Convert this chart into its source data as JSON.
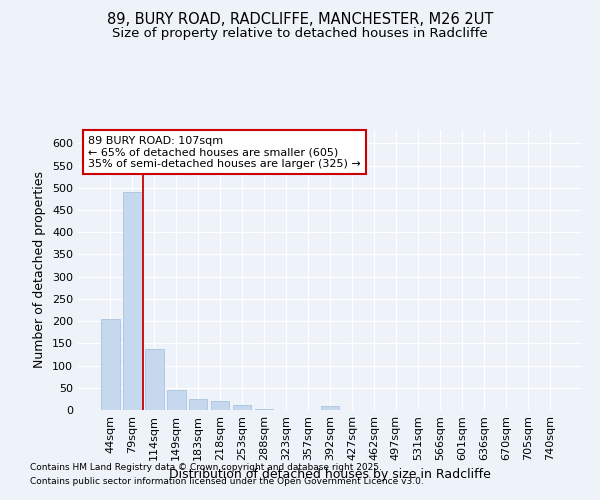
{
  "title_line1": "89, BURY ROAD, RADCLIFFE, MANCHESTER, M26 2UT",
  "title_line2": "Size of property relative to detached houses in Radcliffe",
  "xlabel": "Distribution of detached houses by size in Radcliffe",
  "ylabel": "Number of detached properties",
  "categories": [
    "44sqm",
    "79sqm",
    "114sqm",
    "149sqm",
    "183sqm",
    "218sqm",
    "253sqm",
    "288sqm",
    "323sqm",
    "357sqm",
    "392sqm",
    "427sqm",
    "462sqm",
    "497sqm",
    "531sqm",
    "566sqm",
    "601sqm",
    "636sqm",
    "670sqm",
    "705sqm",
    "740sqm"
  ],
  "values": [
    205,
    490,
    138,
    45,
    24,
    20,
    12,
    2,
    0,
    0,
    8,
    0,
    0,
    0,
    0,
    0,
    0,
    0,
    0,
    0,
    0
  ],
  "bar_color": "#c5d8ee",
  "bar_edge_color": "#a0bcd8",
  "vline_x": 1.5,
  "vline_color": "#cc0000",
  "annotation_title": "89 BURY ROAD: 107sqm",
  "annotation_line2": "← 65% of detached houses are smaller (605)",
  "annotation_line3": "35% of semi-detached houses are larger (325) →",
  "annotation_box_color": "#ffffff",
  "annotation_box_edge": "#cc0000",
  "ylim": [
    0,
    630
  ],
  "yticks": [
    0,
    50,
    100,
    150,
    200,
    250,
    300,
    350,
    400,
    450,
    500,
    550,
    600
  ],
  "footnote1": "Contains HM Land Registry data © Crown copyright and database right 2025.",
  "footnote2": "Contains public sector information licensed under the Open Government Licence v3.0.",
  "background_color": "#eef2f9",
  "grid_color": "#ffffff",
  "title_fontsize": 10.5,
  "subtitle_fontsize": 9.5,
  "axis_label_fontsize": 9,
  "tick_fontsize": 8,
  "annotation_fontsize": 8,
  "footnote_fontsize": 6.5
}
